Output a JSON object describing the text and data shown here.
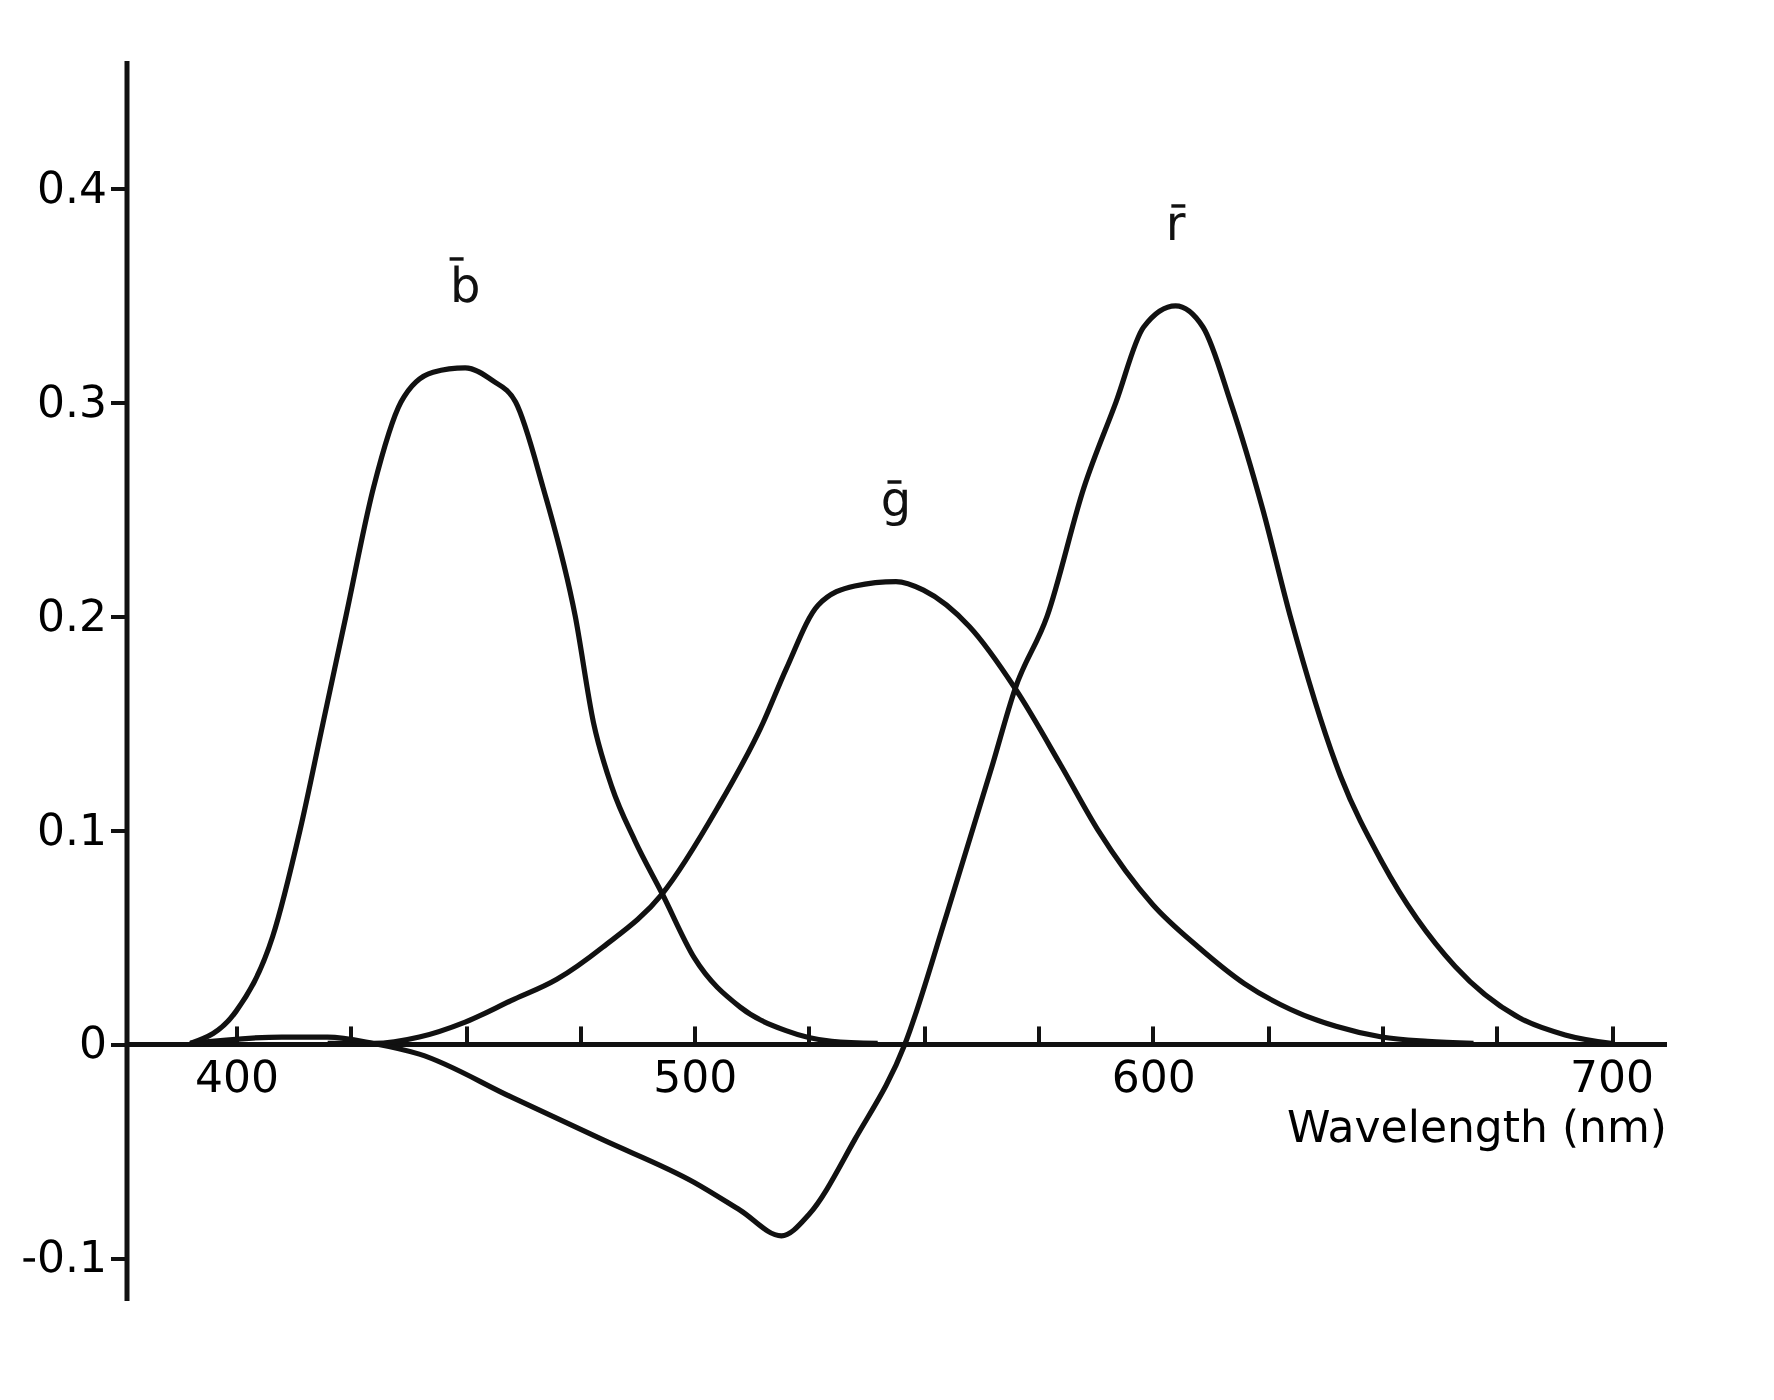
{
  "chart_data": {
    "type": "line",
    "xlabel": "Wavelength (nm)",
    "xlim": [
      376,
      712
    ],
    "ylim": [
      -0.12,
      0.46
    ],
    "xticks": [
      400,
      {
        "value": 425,
        "label": null
      },
      {
        "value": 450,
        "label": null
      },
      {
        "value": 475,
        "label": null
      },
      500,
      {
        "value": 525,
        "label": null
      },
      {
        "value": 550,
        "label": null
      },
      {
        "value": 575,
        "label": null
      },
      600,
      {
        "value": 625,
        "label": null
      },
      {
        "value": 650,
        "label": null
      },
      {
        "value": 675,
        "label": null
      },
      700
    ],
    "yticks": [
      -0.1,
      0,
      0.1,
      0.2,
      0.3,
      0.4
    ],
    "marker": "none",
    "line_style": "solid",
    "series": [
      {
        "name": "b̄",
        "color": "#111111",
        "x": [
          390,
          400,
          408,
          414,
          419,
          424,
          430,
          436,
          443,
          450,
          456,
          461,
          467,
          474,
          478,
          482,
          487,
          493,
          500,
          510,
          520,
          530,
          540
        ],
        "values": [
          0,
          0.015,
          0.05,
          0.1,
          0.15,
          0.2,
          0.26,
          0.3,
          0.314,
          0.316,
          0.31,
          0.3,
          0.26,
          0.2,
          0.15,
          0.12,
          0.095,
          0.07,
          0.04,
          0.017,
          0.006,
          0.001,
          0
        ]
      },
      {
        "name": "ḡ",
        "color": "#111111",
        "x": [
          420,
          430,
          440,
          450,
          460,
          470,
          480,
          493,
          505,
          515,
          520,
          527,
          535,
          544,
          550,
          560,
          570,
          580,
          588,
          600,
          610,
          620,
          630,
          640,
          650,
          660,
          670
        ],
        "values": [
          0,
          0,
          0.003,
          0.01,
          0.02,
          0.03,
          0.045,
          0.07,
          0.11,
          0.15,
          0.175,
          0.205,
          0.214,
          0.216,
          0.212,
          0.195,
          0.166,
          0.13,
          0.1,
          0.065,
          0.045,
          0.028,
          0.016,
          0.008,
          0.003,
          0.001,
          0
        ]
      },
      {
        "name": "r̄",
        "color": "#111111",
        "x": [
          390,
          410,
          420,
          430,
          440,
          460,
          480,
          500,
          510,
          519,
          525,
          535,
          546,
          555,
          565,
          570,
          577,
          585,
          592,
          598,
          605,
          611,
          617,
          624,
          630,
          641,
          650,
          666,
          680,
          690,
          700
        ],
        "values": [
          0,
          0.003,
          0.003,
          0,
          -0.005,
          -0.025,
          -0.045,
          -0.065,
          -0.078,
          -0.09,
          -0.08,
          -0.045,
          0,
          0.06,
          0.13,
          0.166,
          0.2,
          0.26,
          0.3,
          0.335,
          0.345,
          0.335,
          0.3,
          0.25,
          0.2,
          0.125,
          0.085,
          0.036,
          0.012,
          0.004,
          0
        ]
      }
    ]
  }
}
